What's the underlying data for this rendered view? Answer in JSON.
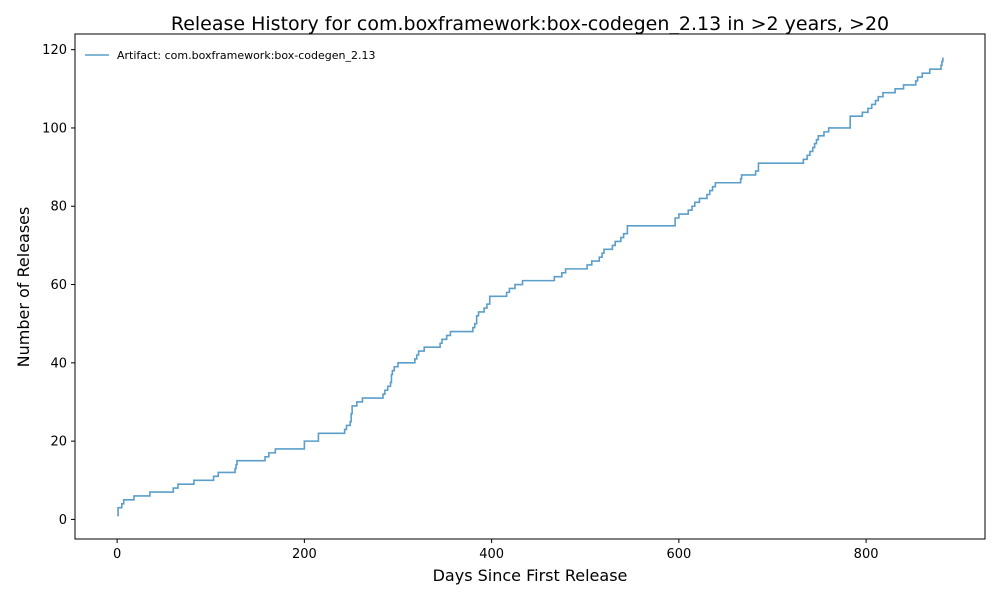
{
  "chart_data": {
    "type": "line",
    "title": "Release History for com.boxframework:box-codegen_2.13 in >2 years, >20",
    "xlabel": "Days Since First Release",
    "ylabel": "Number of Releases",
    "xlim": [
      -45,
      927
    ],
    "ylim": [
      -5,
      124
    ],
    "xticks": [
      0,
      200,
      400,
      600,
      800
    ],
    "yticks": [
      0,
      20,
      40,
      60,
      80,
      100,
      120
    ],
    "grid": false,
    "legend_position": "top-left",
    "line_color": "#5b9ec9",
    "series": [
      {
        "name": "Artifact: com.boxframework:box-codegen_2.13",
        "step": "post",
        "x": [
          0,
          1,
          5,
          7,
          18,
          35,
          60,
          65,
          82,
          103,
          108,
          126,
          127,
          128,
          158,
          162,
          169,
          200,
          215,
          243,
          245,
          249,
          250,
          251,
          256,
          262,
          284,
          286,
          289,
          292,
          293,
          294,
          296,
          300,
          318,
          320,
          322,
          328,
          345,
          347,
          352,
          356,
          380,
          382,
          384,
          386,
          392,
          395,
          398,
          416,
          419,
          425,
          433,
          467,
          475,
          479,
          502,
          507,
          515,
          518,
          520,
          529,
          532,
          538,
          541,
          545,
          596,
          600,
          610,
          614,
          617,
          622,
          630,
          633,
          636,
          639,
          666,
          667,
          682,
          685,
          733,
          737,
          740,
          743,
          745,
          747,
          749,
          755,
          760,
          783,
          796,
          802,
          806,
          810,
          813,
          818,
          831,
          840,
          853,
          855,
          860,
          868,
          880,
          881,
          882
        ],
        "y": [
          1,
          3,
          4,
          5,
          6,
          7,
          8,
          9,
          10,
          11,
          12,
          13,
          14,
          15,
          16,
          17,
          18,
          20,
          22,
          23,
          24,
          25,
          27,
          29,
          30,
          31,
          32,
          33,
          34,
          35,
          37,
          38,
          39,
          40,
          41,
          42,
          43,
          44,
          45,
          46,
          47,
          48,
          49,
          50,
          52,
          53,
          54,
          55,
          57,
          58,
          59,
          60,
          61,
          62,
          63,
          64,
          65,
          66,
          67,
          68,
          69,
          70,
          71,
          72,
          73,
          75,
          77,
          78,
          79,
          80,
          81,
          82,
          83,
          84,
          85,
          86,
          87,
          88,
          89,
          91,
          92,
          93,
          94,
          95,
          96,
          97,
          98,
          99,
          100,
          103,
          104,
          105,
          106,
          107,
          108,
          109,
          110,
          111,
          112,
          113,
          114,
          115,
          116,
          117,
          118
        ]
      }
    ]
  }
}
